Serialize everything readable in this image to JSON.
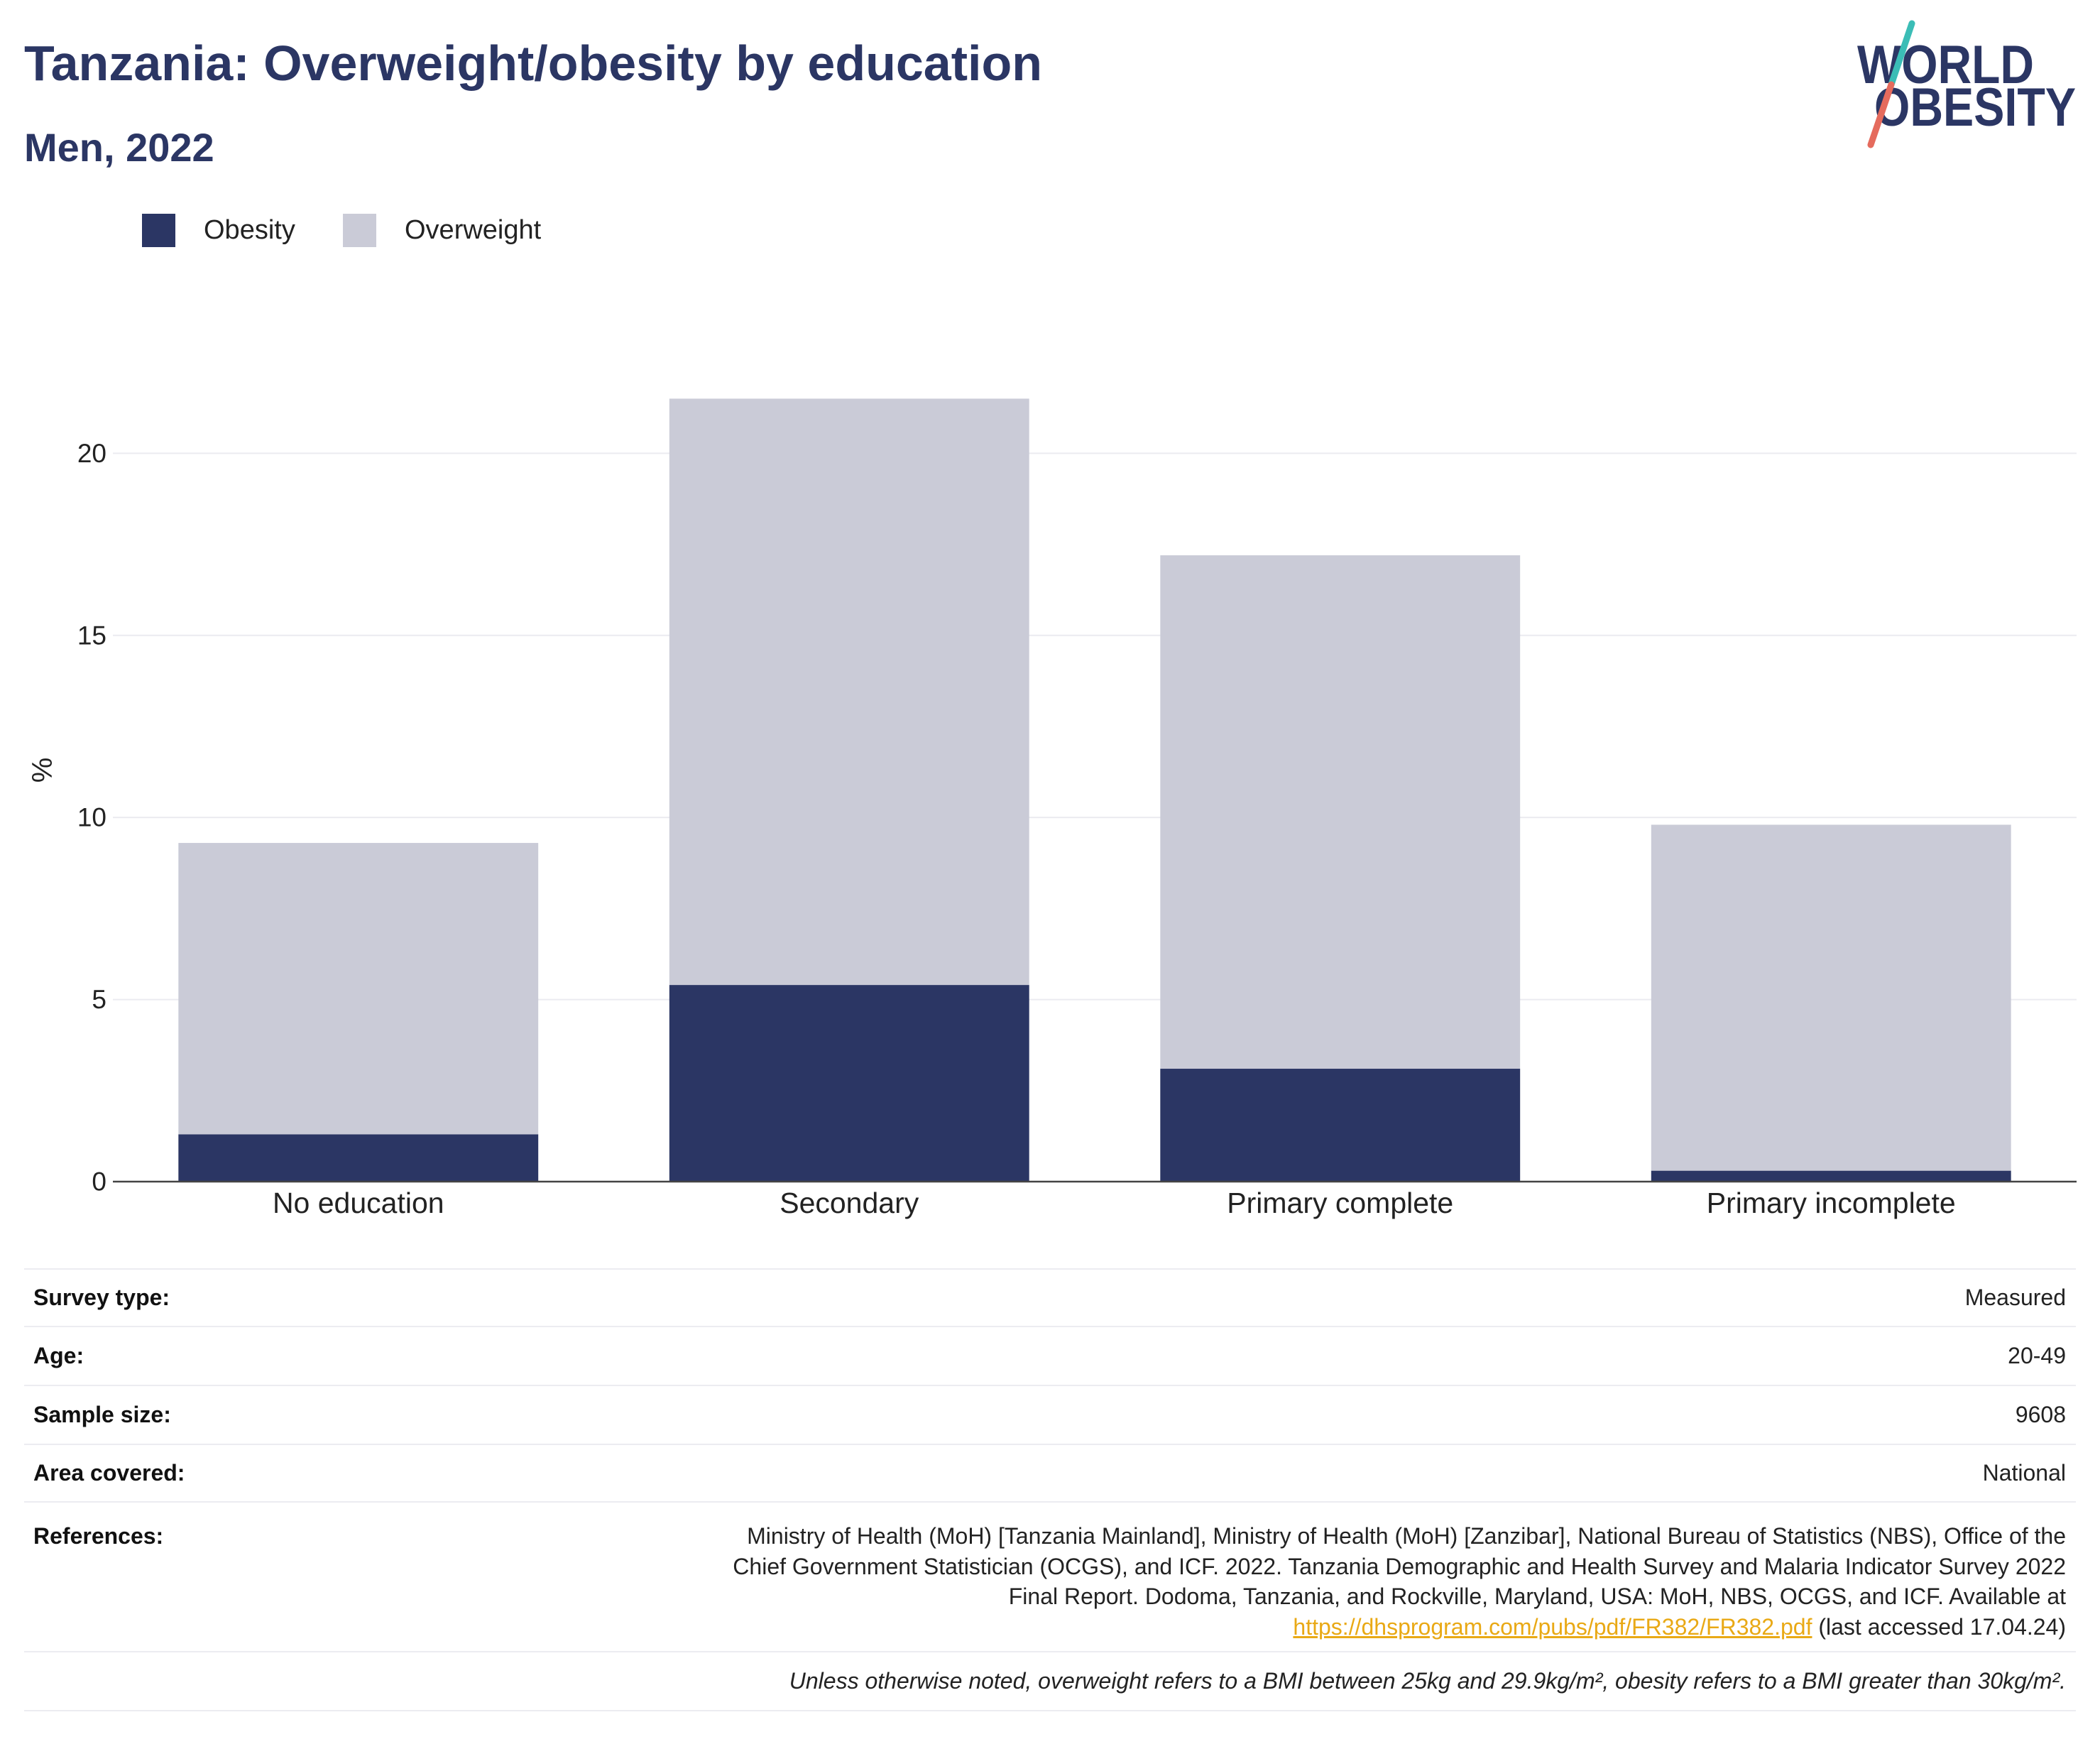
{
  "colors": {
    "brand": "#2b3664",
    "link": "#e9a915"
  },
  "logo": {
    "line1": "WORLD",
    "line2": "OBESITY",
    "text_color": "#2b3664",
    "slash_top_color": "#3bbdb6",
    "slash_bottom_color": "#e56b5d"
  },
  "chart_data": {
    "type": "bar",
    "stacked": true,
    "title": "Tanzania: Overweight/obesity by education",
    "subtitle": "Men, 2022",
    "categories": [
      "No education",
      "Secondary",
      "Primary complete",
      "Primary incomplete"
    ],
    "series": [
      {
        "name": "Obesity",
        "color": "#2b3664",
        "values": [
          1.3,
          5.4,
          3.1,
          0.3
        ]
      },
      {
        "name": "Overweight",
        "color": "#cacbd7",
        "values": [
          8.0,
          16.1,
          14.1,
          9.5
        ]
      }
    ],
    "xlabel": "",
    "ylabel": "%",
    "ylim": [
      0,
      22.6
    ],
    "yticks": [
      0,
      5,
      10,
      15,
      20
    ],
    "grid": true,
    "legend_position": "top-left"
  },
  "details": [
    {
      "label": "Survey type:",
      "value": "Measured"
    },
    {
      "label": "Age:",
      "value": "20-49"
    },
    {
      "label": "Sample size:",
      "value": "9608"
    },
    {
      "label": "Area covered:",
      "value": "National"
    }
  ],
  "references": {
    "label": "References:",
    "lines": [
      "Ministry of Health (MoH) [Tanzania Mainland], Ministry of Health (MoH) [Zanzibar], National Bureau of Statistics (NBS), Office of the",
      "Chief Government Statistician (OCGS), and ICF. 2022. Tanzania Demographic and Health Survey and Malaria Indicator Survey 2022",
      "Final Report. Dodoma, Tanzania, and Rockville, Maryland, USA: MoH, NBS, OCGS, and ICF. Available at"
    ],
    "link": "https://dhsprogram.com/pubs/pdf/FR382/FR382.pdf",
    "after_link": " (last accessed 17.04.24)"
  },
  "footnote": "Unless otherwise noted, overweight refers to a BMI between 25kg and 29.9kg/m², obesity refers to a BMI greater than 30kg/m²."
}
